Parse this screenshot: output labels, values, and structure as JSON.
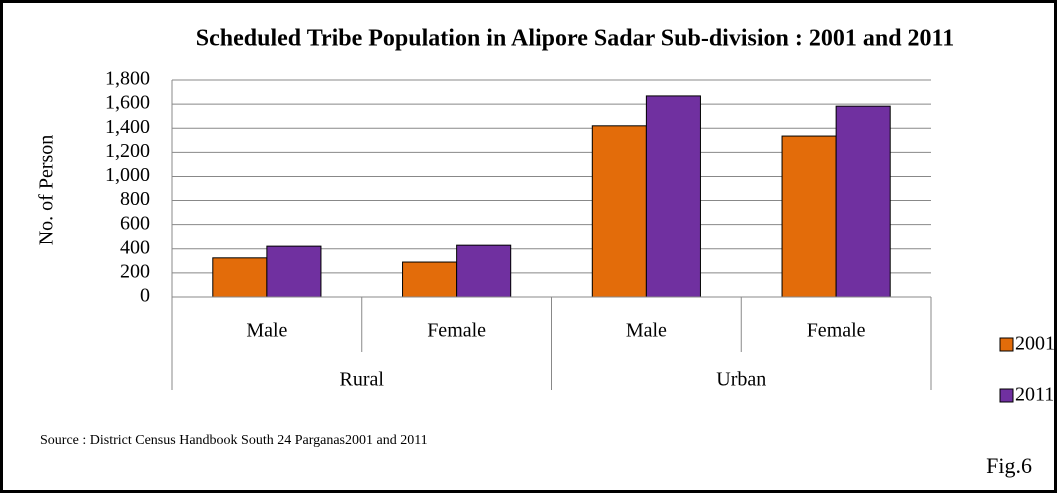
{
  "chart_data": {
    "type": "bar",
    "title": "Scheduled Tribe Population in Alipore Sadar Sub-division : 2001 and 2011",
    "y_label": "No. of Person",
    "categories": [
      "Male",
      "Female",
      "Male",
      "Female"
    ],
    "category_groups": [
      {
        "name": "Rural",
        "size": 2
      },
      {
        "name": "Urban",
        "size": 2
      }
    ],
    "series": [
      {
        "name": "2001",
        "color": "#e36c0a",
        "values": [
          325,
          290,
          1420,
          1335
        ]
      },
      {
        "name": "2011",
        "color": "#7030a0",
        "values": [
          422,
          430,
          1668,
          1583
        ]
      }
    ],
    "ylim": [
      0,
      1800
    ],
    "yticks": [
      0,
      200,
      400,
      600,
      800,
      {
        "value": 1000,
        "label": "1,000"
      },
      {
        "value": 1200,
        "label": "1,200"
      },
      {
        "value": 1400,
        "label": "1,400"
      },
      {
        "value": 1600,
        "label": "1,600"
      },
      {
        "value": 1800,
        "label": "1,800"
      }
    ],
    "grid": true,
    "legend": "right",
    "source": "Source : District Census Handbook South 24 Parganas2001 and 2011",
    "figure_label": "Fig.6"
  }
}
